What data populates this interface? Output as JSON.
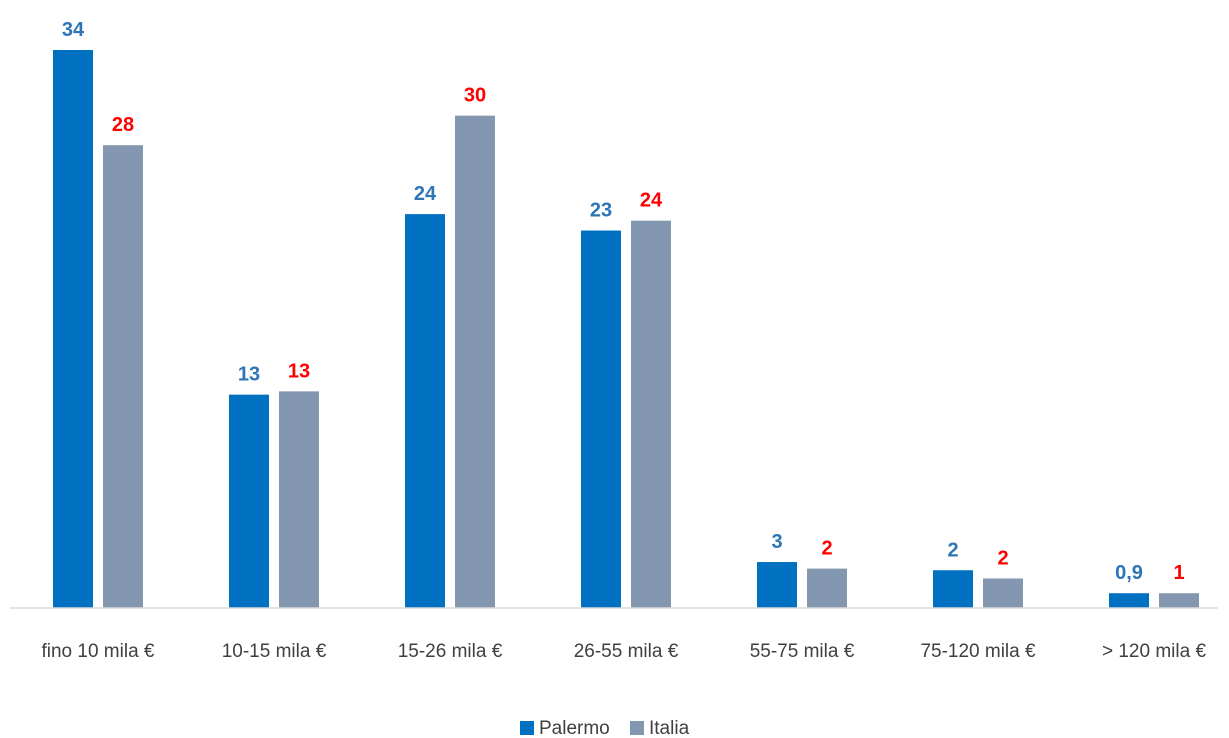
{
  "chart_data": {
    "type": "bar",
    "categories": [
      "fino 10 mila €",
      "10-15 mila €",
      "15-26 mila €",
      "26-55 mila €",
      "55-75 mila €",
      "75-120 mila €",
      "> 120 mila €"
    ],
    "series": [
      {
        "name": "Palermo",
        "values": [
          34,
          13,
          24,
          23,
          2.8,
          2.3,
          0.9
        ],
        "data_labels": [
          "34",
          "13",
          "24",
          "23",
          "3",
          "2",
          "0,9"
        ],
        "color": "#0070C0",
        "label_color": "#2E75B6"
      },
      {
        "name": "Italia",
        "values": [
          28.2,
          13.2,
          30,
          23.6,
          2.4,
          1.8,
          0.9
        ],
        "data_labels": [
          "28",
          "13",
          "30",
          "24",
          "2",
          "2",
          "1"
        ],
        "color": "#8497B0",
        "label_color": "#FF0000"
      }
    ],
    "title": "",
    "xlabel": "",
    "ylabel": "",
    "ylim": [
      0,
      34
    ],
    "grid": false,
    "legend_position": "bottom"
  }
}
